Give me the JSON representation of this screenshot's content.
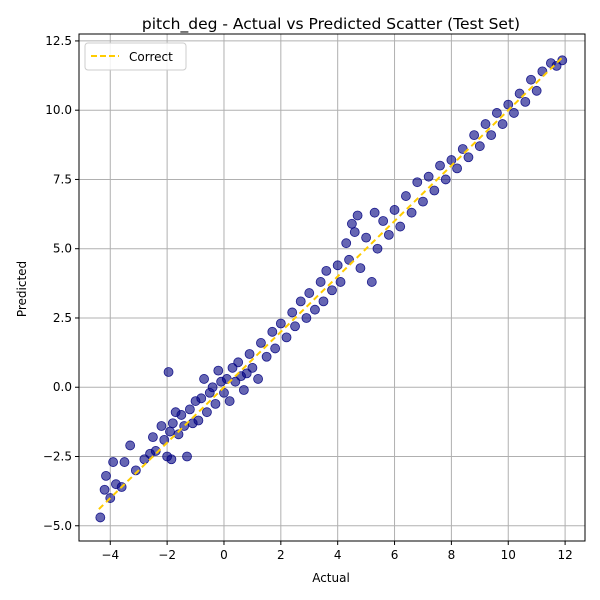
{
  "chart_data": {
    "type": "scatter",
    "title": "pitch_deg - Actual vs Predicted Scatter (Test Set)",
    "xlabel": "Actual",
    "ylabel": "Predicted",
    "xlim": [
      -5.1,
      12.7
    ],
    "ylim": [
      -5.55,
      12.75
    ],
    "xticks": [
      -4,
      -2,
      0,
      2,
      4,
      6,
      8,
      10,
      12
    ],
    "xtick_labels": [
      "−4",
      "−2",
      "0",
      "2",
      "4",
      "6",
      "8",
      "10",
      "12"
    ],
    "yticks": [
      -5.0,
      -2.5,
      0.0,
      2.5,
      5.0,
      7.5,
      10.0,
      12.5
    ],
    "ytick_labels": [
      "−5.0",
      "−2.5",
      "0.0",
      "2.5",
      "5.0",
      "7.5",
      "10.0",
      "12.5"
    ],
    "grid": true,
    "legend_position": "upper-left",
    "series": [
      {
        "kind": "scatter",
        "color": "#000080",
        "points": [
          [
            -4.35,
            -4.7
          ],
          [
            -4.2,
            -3.7
          ],
          [
            -4.15,
            -3.2
          ],
          [
            -4.0,
            -4.0
          ],
          [
            -3.9,
            -2.7
          ],
          [
            -3.8,
            -3.5
          ],
          [
            -3.6,
            -3.6
          ],
          [
            -3.5,
            -2.7
          ],
          [
            -3.3,
            -2.1
          ],
          [
            -3.1,
            -3.0
          ],
          [
            -2.8,
            -2.6
          ],
          [
            -2.6,
            -2.4
          ],
          [
            -2.5,
            -1.8
          ],
          [
            -2.4,
            -2.3
          ],
          [
            -2.2,
            -1.4
          ],
          [
            -2.1,
            -1.9
          ],
          [
            -2.0,
            -2.5
          ],
          [
            -1.95,
            0.55
          ],
          [
            -1.9,
            -1.6
          ],
          [
            -1.85,
            -2.6
          ],
          [
            -1.8,
            -1.3
          ],
          [
            -1.7,
            -0.9
          ],
          [
            -1.6,
            -1.7
          ],
          [
            -1.5,
            -1.0
          ],
          [
            -1.4,
            -1.4
          ],
          [
            -1.3,
            -2.5
          ],
          [
            -1.2,
            -0.8
          ],
          [
            -1.1,
            -1.3
          ],
          [
            -1.0,
            -0.5
          ],
          [
            -0.9,
            -1.2
          ],
          [
            -0.8,
            -0.4
          ],
          [
            -0.7,
            0.3
          ],
          [
            -0.6,
            -0.9
          ],
          [
            -0.5,
            -0.2
          ],
          [
            -0.4,
            0.0
          ],
          [
            -0.3,
            -0.6
          ],
          [
            -0.2,
            0.6
          ],
          [
            -0.1,
            0.2
          ],
          [
            0.0,
            -0.2
          ],
          [
            0.1,
            0.3
          ],
          [
            0.2,
            -0.5
          ],
          [
            0.3,
            0.7
          ],
          [
            0.4,
            0.2
          ],
          [
            0.5,
            0.9
          ],
          [
            0.6,
            0.4
          ],
          [
            0.7,
            -0.1
          ],
          [
            0.8,
            0.5
          ],
          [
            0.9,
            1.2
          ],
          [
            1.0,
            0.7
          ],
          [
            1.2,
            0.3
          ],
          [
            1.3,
            1.6
          ],
          [
            1.5,
            1.1
          ],
          [
            1.7,
            2.0
          ],
          [
            1.8,
            1.4
          ],
          [
            2.0,
            2.3
          ],
          [
            2.2,
            1.8
          ],
          [
            2.4,
            2.7
          ],
          [
            2.5,
            2.2
          ],
          [
            2.7,
            3.1
          ],
          [
            2.9,
            2.5
          ],
          [
            3.0,
            3.4
          ],
          [
            3.2,
            2.8
          ],
          [
            3.4,
            3.8
          ],
          [
            3.5,
            3.1
          ],
          [
            3.6,
            4.2
          ],
          [
            3.8,
            3.5
          ],
          [
            4.0,
            4.4
          ],
          [
            4.1,
            3.8
          ],
          [
            4.3,
            5.2
          ],
          [
            4.4,
            4.6
          ],
          [
            4.5,
            5.9
          ],
          [
            4.6,
            5.6
          ],
          [
            4.7,
            6.2
          ],
          [
            4.8,
            4.3
          ],
          [
            5.0,
            5.4
          ],
          [
            5.2,
            3.8
          ],
          [
            5.3,
            6.3
          ],
          [
            5.4,
            5.0
          ],
          [
            5.6,
            6.0
          ],
          [
            5.8,
            5.5
          ],
          [
            6.0,
            6.4
          ],
          [
            6.2,
            5.8
          ],
          [
            6.4,
            6.9
          ],
          [
            6.6,
            6.3
          ],
          [
            6.8,
            7.4
          ],
          [
            7.0,
            6.7
          ],
          [
            7.2,
            7.6
          ],
          [
            7.4,
            7.1
          ],
          [
            7.6,
            8.0
          ],
          [
            7.8,
            7.5
          ],
          [
            8.0,
            8.2
          ],
          [
            8.2,
            7.9
          ],
          [
            8.4,
            8.6
          ],
          [
            8.6,
            8.3
          ],
          [
            8.8,
            9.1
          ],
          [
            9.0,
            8.7
          ],
          [
            9.2,
            9.5
          ],
          [
            9.4,
            9.1
          ],
          [
            9.6,
            9.9
          ],
          [
            9.8,
            9.5
          ],
          [
            10.0,
            10.2
          ],
          [
            10.2,
            9.9
          ],
          [
            10.4,
            10.6
          ],
          [
            10.6,
            10.3
          ],
          [
            10.8,
            11.1
          ],
          [
            11.0,
            10.7
          ],
          [
            11.2,
            11.4
          ],
          [
            11.5,
            11.7
          ],
          [
            11.7,
            11.6
          ],
          [
            11.9,
            11.8
          ]
        ]
      },
      {
        "name": "Correct",
        "kind": "line",
        "color": "#ffcc00",
        "dash": "dashed",
        "x": [
          -4.4,
          11.9
        ],
        "y": [
          -4.4,
          11.9
        ]
      }
    ]
  }
}
